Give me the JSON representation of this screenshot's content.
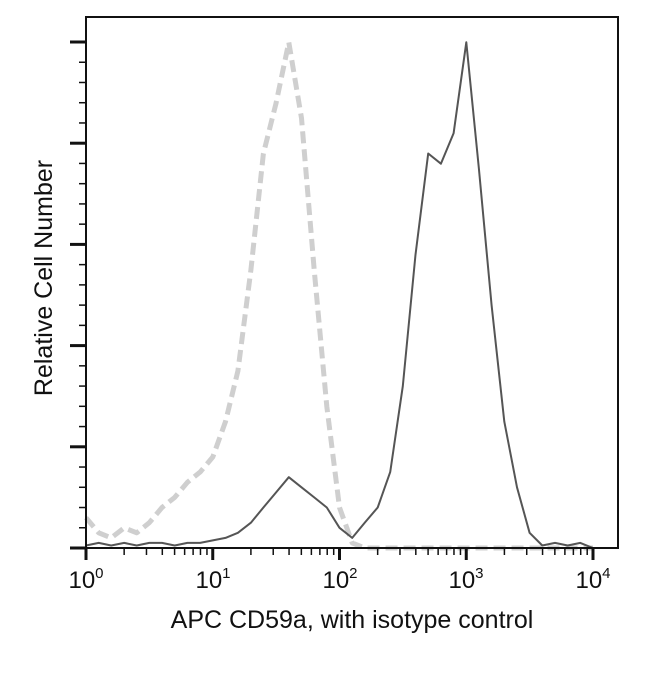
{
  "chart_data": {
    "type": "line",
    "title": "",
    "xlabel": "APC CD59a, with isotype control",
    "ylabel": "Relative Cell Number",
    "xscale": "log",
    "xlim": [
      1,
      10000
    ],
    "ylim": [
      0,
      105
    ],
    "grid": false,
    "legend": "none",
    "x_tick_labels": [
      {
        "base": "10",
        "exp": "0"
      },
      {
        "base": "10",
        "exp": "1"
      },
      {
        "base": "10",
        "exp": "2"
      },
      {
        "base": "10",
        "exp": "3"
      },
      {
        "base": "10",
        "exp": "4"
      }
    ],
    "x": [
      1,
      1.26,
      1.58,
      2,
      2.51,
      3.16,
      3.98,
      5.01,
      6.31,
      7.94,
      10,
      12.6,
      15.8,
      20,
      25.1,
      31.6,
      39.8,
      50.1,
      63.1,
      79.4,
      100,
      126,
      158,
      200,
      251,
      316,
      398,
      501,
      631,
      794,
      1000,
      1259,
      1585,
      1995,
      2512,
      3162,
      3981,
      5012,
      6310,
      7943,
      10000
    ],
    "series": [
      {
        "style": "dashed",
        "color": "#cfcfcf",
        "values": [
          6,
          3,
          2,
          4,
          3,
          5,
          8,
          10,
          13,
          15,
          18,
          25,
          35,
          55,
          78,
          88,
          100,
          85,
          55,
          28,
          8,
          1,
          0,
          0,
          0,
          0,
          0,
          0,
          0,
          0,
          0,
          0,
          0,
          0,
          0,
          0,
          0,
          0,
          0,
          0,
          0
        ]
      },
      {
        "style": "solid",
        "color": "#555555",
        "values": [
          0.5,
          1,
          0.5,
          1,
          0.5,
          1,
          1,
          0.5,
          1,
          1,
          1.5,
          2,
          3,
          5,
          8,
          11,
          14,
          12,
          10,
          8,
          4,
          2,
          5,
          8,
          15,
          32,
          58,
          78,
          76,
          82,
          100,
          75,
          48,
          25,
          12,
          3,
          0.5,
          1,
          0.5,
          1,
          0
        ]
      }
    ]
  }
}
